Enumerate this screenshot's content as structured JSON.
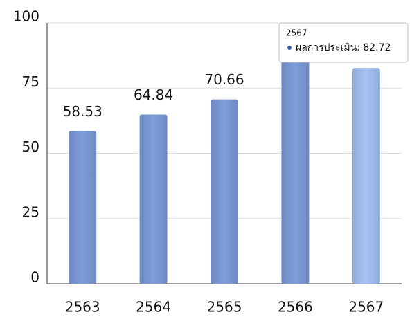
{
  "chart_data": {
    "type": "bar",
    "categories": [
      "2563",
      "2564",
      "2565",
      "2566",
      "2567"
    ],
    "series": [
      {
        "name": "ผลการประเมิน",
        "values": [
          58.53,
          64.84,
          70.66,
          86.5,
          82.72
        ],
        "colors": [
          "#7e9ddb",
          "#7e9ddb",
          "#7e9ddb",
          "#7e9ddb",
          "#a5c3f5"
        ]
      }
    ],
    "ylim": [
      0,
      100
    ],
    "yticks": [
      0,
      25,
      50,
      75,
      100
    ],
    "grid": true,
    "tooltip": {
      "title": "2567",
      "text": "ผลการประเมิน: 82.72"
    }
  }
}
